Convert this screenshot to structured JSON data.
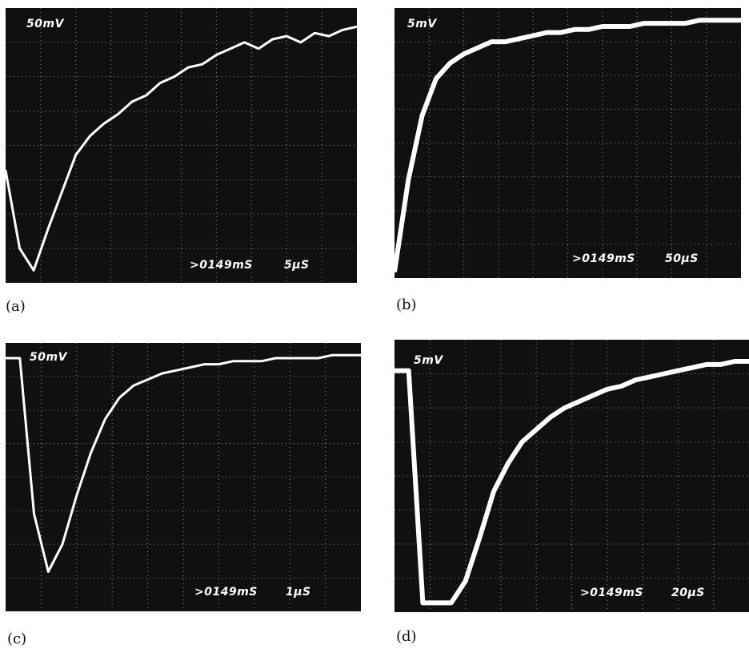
{
  "figure": {
    "panels": [
      {
        "id": "a",
        "caption": "(a)",
        "volts_per_div": "50mV",
        "delay": ">0149mS",
        "time_per_div": "5μS"
      },
      {
        "id": "b",
        "caption": "(b)",
        "volts_per_div": "5mV",
        "delay": ">0149mS",
        "time_per_div": "50μS"
      },
      {
        "id": "c",
        "caption": "(c)",
        "volts_per_div": "50mV",
        "delay": ">0149mS",
        "time_per_div": "1μS"
      },
      {
        "id": "d",
        "caption": "(d)",
        "volts_per_div": "5mV",
        "delay": ">0149mS",
        "time_per_div": "20μS"
      }
    ]
  },
  "colors": {
    "screen": "#101010",
    "grid": "#8a8a8a",
    "trace": "#ffffff"
  },
  "chart_data": [
    {
      "type": "line",
      "grid": true,
      "x": [
        0,
        0.4,
        0.8,
        1.2,
        1.6,
        2,
        2.4,
        2.8,
        3.2,
        3.6,
        4,
        4.4,
        4.8,
        5.2,
        5.6,
        6,
        6.4,
        6.8,
        7.2,
        7.6,
        8,
        8.4,
        8.8,
        9.2,
        9.6,
        10
      ],
      "series": [
        {
          "values": [
            3.6,
            1.1,
            0.4,
            1.7,
            2.9,
            4.1,
            4.7,
            5.1,
            5.4,
            5.8,
            6.0,
            6.4,
            6.6,
            6.9,
            7.0,
            7.3,
            7.5,
            7.7,
            7.5,
            7.8,
            7.9,
            7.7,
            8.0,
            7.9,
            8.1,
            8.2
          ]
        }
      ],
      "xlim": [
        0,
        10
      ],
      "ylim": [
        0,
        8.8
      ]
    },
    {
      "type": "line",
      "grid": true,
      "x": [
        0,
        0.4,
        0.8,
        1.2,
        1.6,
        2,
        2.4,
        2.8,
        3.2,
        3.6,
        4,
        4.4,
        4.8,
        5.2,
        5.6,
        6,
        6.4,
        6.8,
        7.2,
        7.6,
        8,
        8.4,
        8.8,
        9.2,
        9.6,
        10
      ],
      "series": [
        {
          "values": [
            0.2,
            3.2,
            5.3,
            6.5,
            7.0,
            7.3,
            7.5,
            7.7,
            7.7,
            7.8,
            7.9,
            8.0,
            8.0,
            8.1,
            8.1,
            8.2,
            8.2,
            8.2,
            8.3,
            8.3,
            8.3,
            8.3,
            8.4,
            8.4,
            8.4,
            8.4
          ]
        }
      ],
      "xlim": [
        0,
        10
      ],
      "ylim": [
        0,
        8.8
      ]
    },
    {
      "type": "line",
      "grid": true,
      "x": [
        0,
        0.4,
        0.8,
        1.2,
        1.6,
        2,
        2.4,
        2.8,
        3.2,
        3.6,
        4,
        4.4,
        4.8,
        5.2,
        5.6,
        6,
        6.4,
        6.8,
        7.2,
        7.6,
        8,
        8.4,
        8.8,
        9.2,
        9.6,
        10
      ],
      "series": [
        {
          "values": [
            8.3,
            8.3,
            3.2,
            1.3,
            2.2,
            3.8,
            5.2,
            6.3,
            7.0,
            7.4,
            7.6,
            7.8,
            7.9,
            8.0,
            8.1,
            8.1,
            8.2,
            8.2,
            8.2,
            8.3,
            8.3,
            8.3,
            8.3,
            8.4,
            8.4,
            8.4
          ]
        }
      ],
      "xlim": [
        0,
        10
      ],
      "ylim": [
        0,
        8.8
      ]
    },
    {
      "type": "line",
      "grid": true,
      "x": [
        0,
        0.4,
        0.8,
        1.2,
        1.6,
        2,
        2.4,
        2.8,
        3.2,
        3.6,
        4,
        4.4,
        4.8,
        5.2,
        5.6,
        6,
        6.4,
        6.8,
        7.2,
        7.6,
        8,
        8.4,
        8.8,
        9.2,
        9.6,
        10
      ],
      "series": [
        {
          "values": [
            7.8,
            7.8,
            0.3,
            0.3,
            0.3,
            1.0,
            2.4,
            3.9,
            4.8,
            5.5,
            5.9,
            6.3,
            6.6,
            6.8,
            7.0,
            7.2,
            7.3,
            7.5,
            7.6,
            7.7,
            7.8,
            7.9,
            8.0,
            8.0,
            8.1,
            8.1
          ]
        }
      ],
      "xlim": [
        0,
        10
      ],
      "ylim": [
        0,
        8.8
      ]
    }
  ]
}
